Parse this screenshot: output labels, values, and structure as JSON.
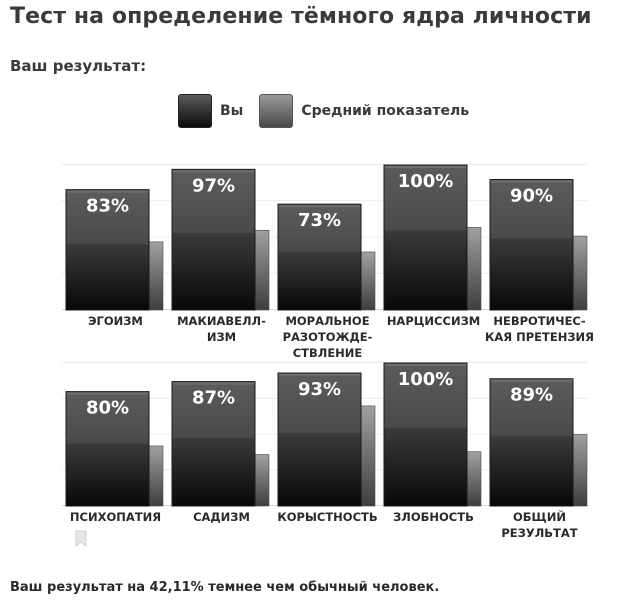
{
  "page": {
    "title": "Тест на определение тёмного ядра личности",
    "subtitle": "Ваш результат:",
    "footer": "Ваш результат на 42,11% темнее чем обычный человек."
  },
  "legend": {
    "you": "Вы",
    "average": "Средний показатель"
  },
  "colors": {
    "you_top": "#5a5a5a",
    "you_bottom": "#0a0a0a",
    "avg_top": "#9a9a9a",
    "avg_bottom": "#4a4a4a"
  },
  "chart_data": {
    "type": "bar",
    "title": "Тест на определение тёмного ядра личности",
    "ylim": [
      0,
      100
    ],
    "grid": true,
    "legend_position": "top-center",
    "series": [
      {
        "name": "Вы",
        "values": [
          83,
          97,
          73,
          100,
          90,
          80,
          87,
          93,
          100,
          89
        ]
      },
      {
        "name": "Средний показатель",
        "values": [
          47,
          55,
          40,
          57,
          51,
          42,
          36,
          70,
          38,
          50
        ]
      }
    ],
    "value_labels": [
      "83%",
      "97%",
      "73%",
      "100%",
      "90%",
      "80%",
      "87%",
      "93%",
      "100%",
      "89%"
    ],
    "categories": [
      [
        "ЭГОИЗМ"
      ],
      [
        "МАКИАВЕЛЛ-",
        "ИЗМ"
      ],
      [
        "МОРАЛЬНОЕ",
        "РАЗОТОЖДЕ-",
        "СТВЛЕНИЕ"
      ],
      [
        "НАРЦИССИЗМ"
      ],
      [
        "НЕВРОТИЧЕС-",
        "КАЯ ПРЕТЕНЗИЯ"
      ],
      [
        "ПСИХОПАТИЯ"
      ],
      [
        "САДИЗМ"
      ],
      [
        "КОРЫСТНОСТЬ"
      ],
      [
        "ЗЛОБНОСТЬ"
      ],
      [
        "ОБЩИЙ",
        "РЕЗУЛЬТАТ"
      ]
    ]
  }
}
